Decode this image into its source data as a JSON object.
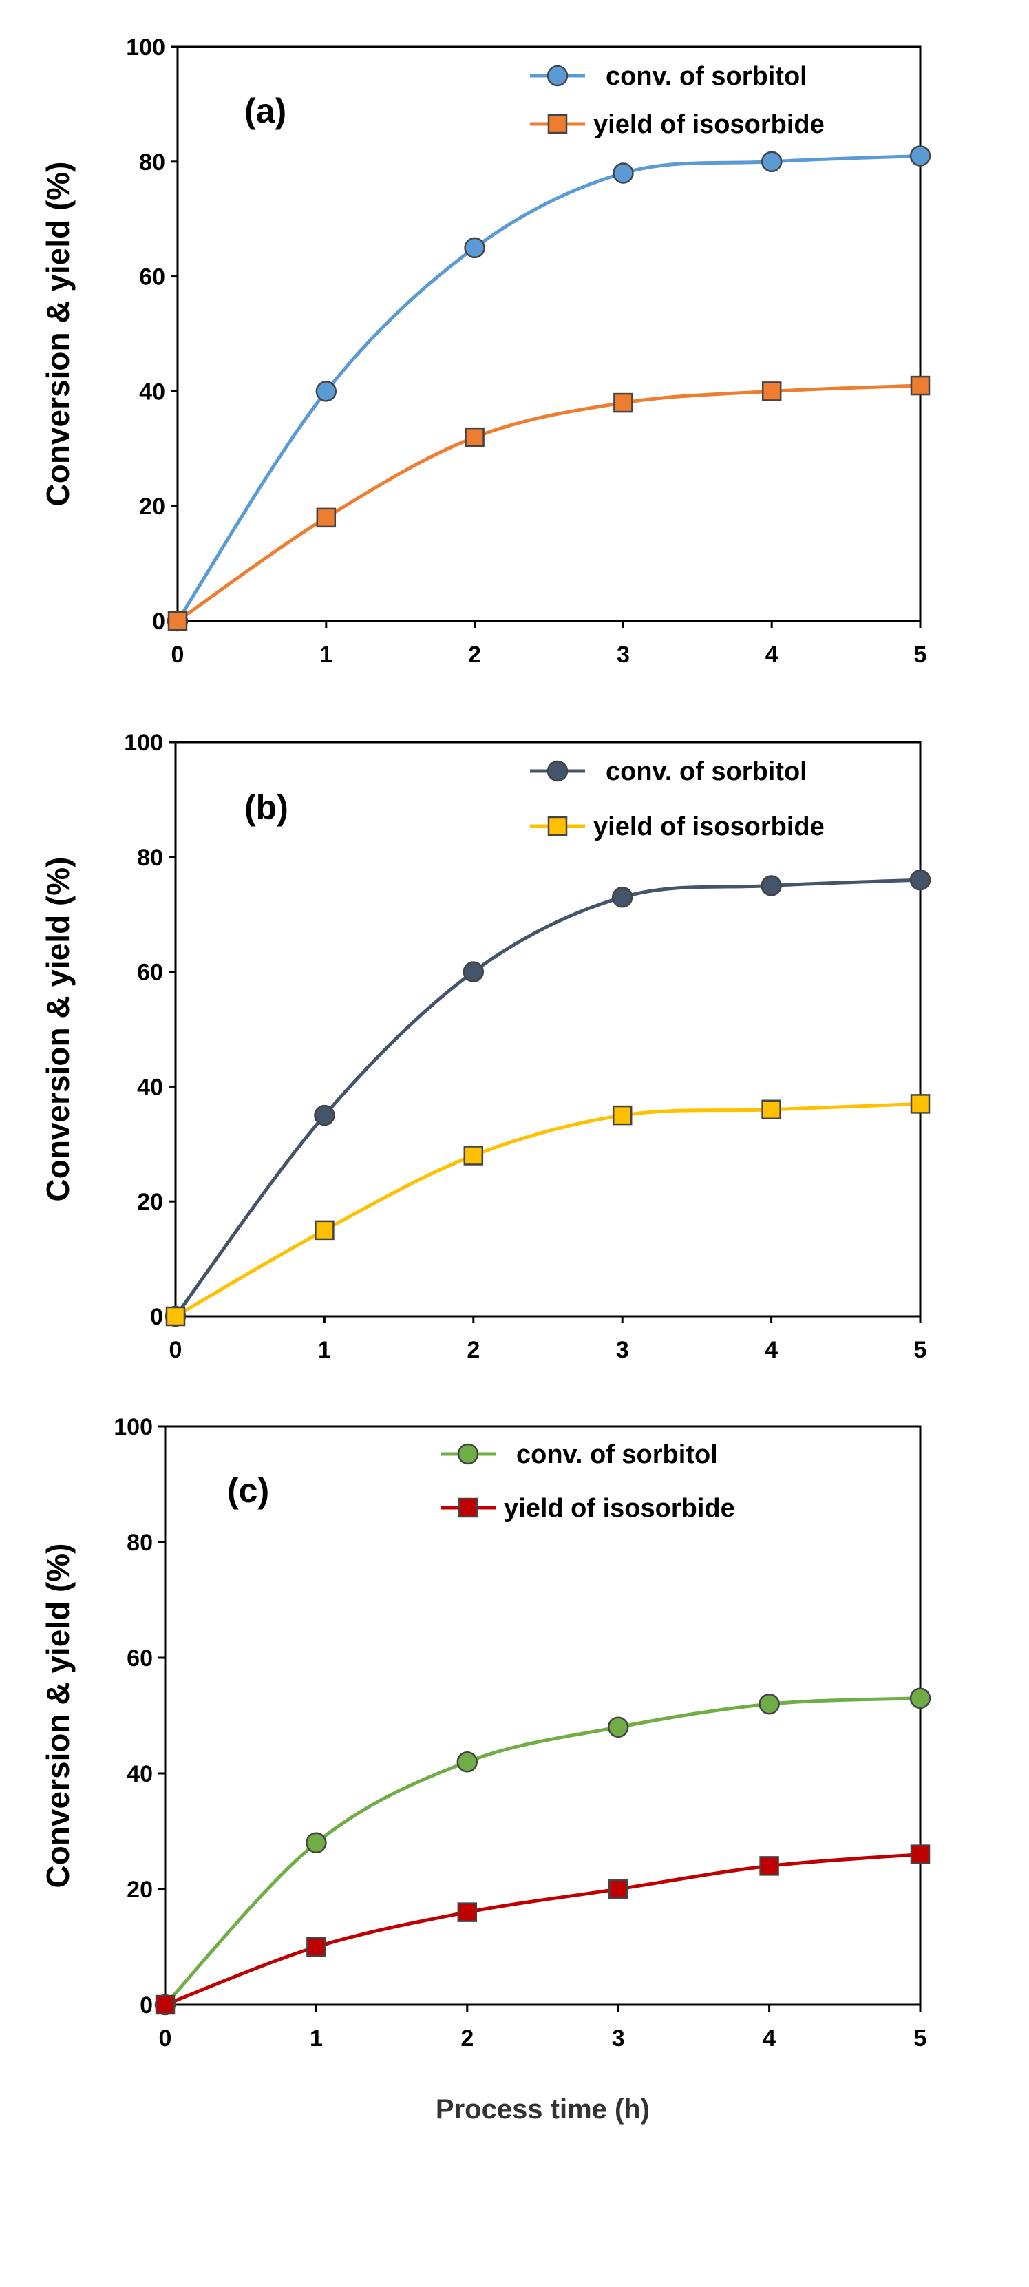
{
  "chart_data": [
    {
      "type": "line",
      "panel_label": "(a)",
      "ylabel": "Conversion & yield (%)",
      "xlabel": "",
      "xlim": [
        0,
        5
      ],
      "ylim": [
        0,
        100
      ],
      "x": [
        0,
        1,
        2,
        3,
        4,
        5
      ],
      "xticks": [
        "0",
        "1",
        "2",
        "3",
        "4",
        "5"
      ],
      "yticks": [
        "0",
        "20",
        "40",
        "60",
        "80",
        "100"
      ],
      "legend_position": "top-right",
      "series": [
        {
          "name": "conv. of sorbitol",
          "marker": "circle",
          "color": "#5B9BD5",
          "fill": "#5B9BD5",
          "values": [
            0,
            40,
            65,
            78,
            80,
            81
          ]
        },
        {
          "name": "yield of isosorbide",
          "marker": "square",
          "color": "#ED7D31",
          "fill": "#ED7D31",
          "values": [
            0,
            18,
            32,
            38,
            40,
            41
          ]
        }
      ]
    },
    {
      "type": "line",
      "panel_label": "(b)",
      "ylabel": "Conversion & yield (%)",
      "xlabel": "",
      "xlim": [
        0,
        5
      ],
      "ylim": [
        0,
        100
      ],
      "x": [
        0,
        1,
        2,
        3,
        4,
        5
      ],
      "xticks": [
        "0",
        "1",
        "2",
        "3",
        "4",
        "5"
      ],
      "yticks": [
        "0",
        "20",
        "40",
        "60",
        "80",
        "100"
      ],
      "legend_position": "top-right",
      "series": [
        {
          "name": "conv. of sorbitol",
          "marker": "circle",
          "color": "#44546A",
          "fill": "#44546A",
          "values": [
            0,
            35,
            60,
            73,
            75,
            76
          ]
        },
        {
          "name": "yield of isosorbide",
          "marker": "square",
          "color": "#FFC000",
          "fill": "#FFC000",
          "values": [
            0,
            15,
            28,
            35,
            36,
            37
          ]
        }
      ]
    },
    {
      "type": "line",
      "panel_label": "(c)",
      "ylabel": "Conversion & yield (%)",
      "xlabel": "Process time (h)",
      "xlim": [
        0,
        5
      ],
      "ylim": [
        0,
        100
      ],
      "x": [
        0,
        1,
        2,
        3,
        4,
        5
      ],
      "xticks": [
        "0",
        "1",
        "2",
        "3",
        "4",
        "5"
      ],
      "yticks": [
        "0",
        "20",
        "40",
        "60",
        "80",
        "100"
      ],
      "legend_position": "top-right",
      "series": [
        {
          "name": "conv. of sorbitol",
          "marker": "circle",
          "color": "#70AD47",
          "fill": "#70AD47",
          "values": [
            0,
            28,
            42,
            48,
            52,
            53
          ]
        },
        {
          "name": "yield of isosorbide",
          "marker": "square",
          "color": "#C00000",
          "fill": "#C00000",
          "values": [
            0,
            10,
            16,
            20,
            24,
            26
          ]
        }
      ]
    }
  ]
}
